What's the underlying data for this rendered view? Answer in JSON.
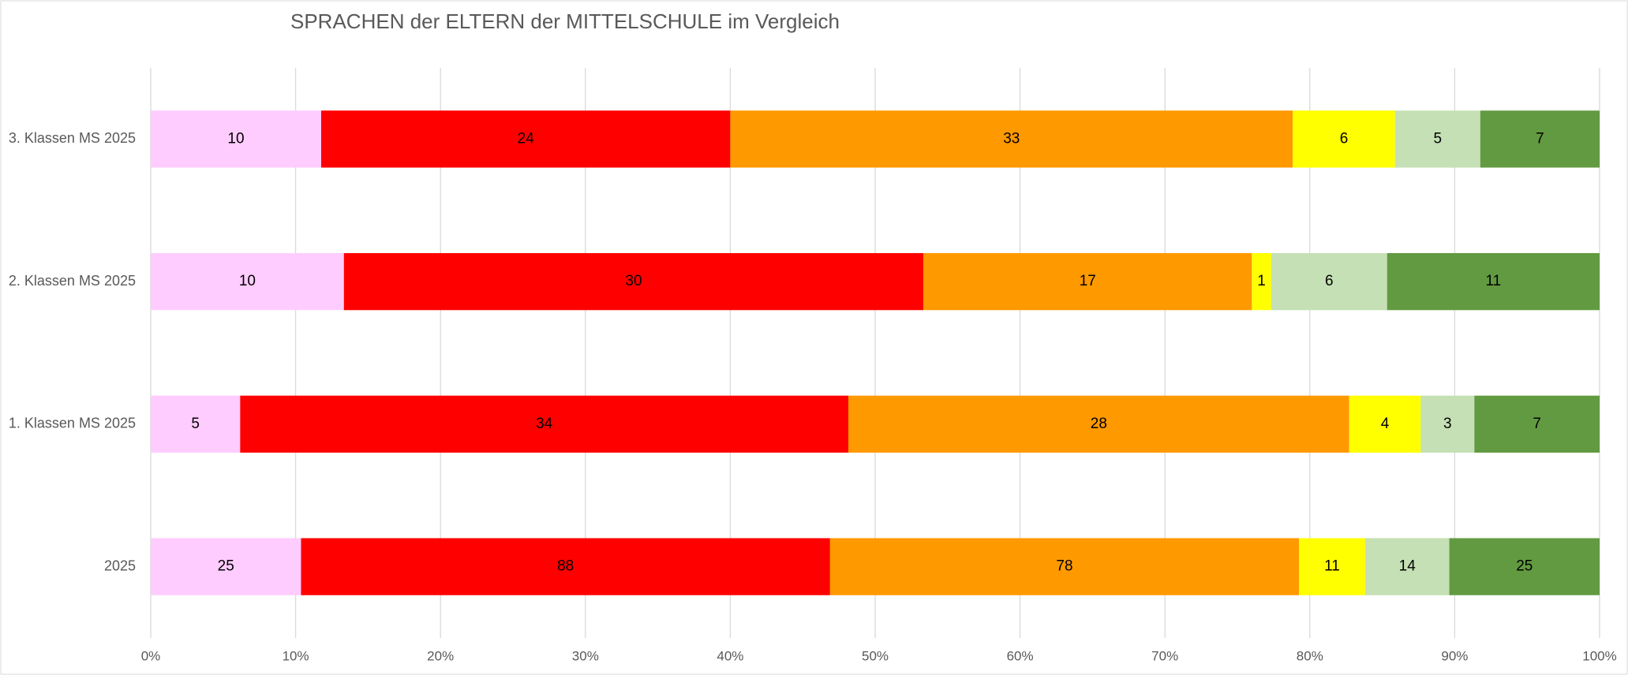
{
  "chart_data": {
    "type": "stacked_percent_bar",
    "title": "SPRACHEN der ELTERN  der MITTELSCHULE im Vergleich",
    "categories": [
      "3. Klassen MS 2025",
      "2. Klassen MS 2025",
      "1. Klassen MS 2025",
      "2025"
    ],
    "series": [
      {
        "color": "#ffccff",
        "values": [
          10,
          10,
          5,
          25
        ]
      },
      {
        "color": "#ff0000",
        "values": [
          24,
          30,
          34,
          88
        ]
      },
      {
        "color": "#ff9900",
        "values": [
          33,
          17,
          28,
          78
        ]
      },
      {
        "color": "#ffff00",
        "values": [
          6,
          1,
          4,
          11
        ]
      },
      {
        "color": "#c5e0b4",
        "values": [
          5,
          6,
          3,
          14
        ]
      },
      {
        "color": "#629a41",
        "values": [
          7,
          11,
          7,
          25
        ]
      }
    ],
    "xlim": [
      0,
      100
    ],
    "xticks": [
      {
        "value": 0,
        "label": "0%"
      },
      {
        "value": 10,
        "label": "10%"
      },
      {
        "value": 20,
        "label": "20%"
      },
      {
        "value": 30,
        "label": "30%"
      },
      {
        "value": 40,
        "label": "40%"
      },
      {
        "value": 50,
        "label": "50%"
      },
      {
        "value": 60,
        "label": "60%"
      },
      {
        "value": 70,
        "label": "70%"
      },
      {
        "value": 80,
        "label": "80%"
      },
      {
        "value": 90,
        "label": "90%"
      },
      {
        "value": 100,
        "label": "100%"
      }
    ],
    "grid": true
  }
}
